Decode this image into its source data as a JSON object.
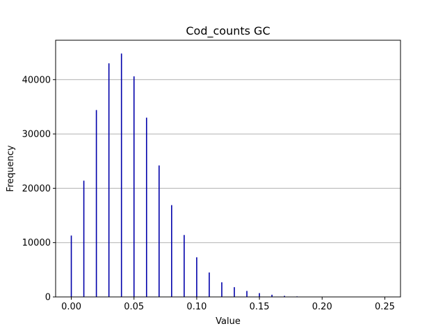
{
  "chart_data": {
    "type": "bar",
    "title": "Cod_counts GC",
    "xlabel": "Value",
    "ylabel": "Frequency",
    "xlim": [
      -0.0125,
      0.2625
    ],
    "ylim": [
      0,
      47250
    ],
    "grid": "y",
    "bar_color": "#0000aa",
    "x": [
      0.0,
      0.01,
      0.02,
      0.03,
      0.04,
      0.05,
      0.06,
      0.07,
      0.08,
      0.09,
      0.1,
      0.11,
      0.12,
      0.13,
      0.14,
      0.15,
      0.16,
      0.17,
      0.18,
      0.19,
      0.2
    ],
    "values": [
      11300,
      21400,
      34400,
      43000,
      44800,
      40600,
      33000,
      24200,
      16900,
      11400,
      7300,
      4500,
      2700,
      1800,
      1100,
      700,
      400,
      200,
      100,
      50,
      20
    ],
    "xticks": [
      0.0,
      0.05,
      0.1,
      0.15,
      0.2,
      0.25
    ],
    "xtick_labels": [
      "0.00",
      "0.05",
      "0.10",
      "0.15",
      "0.20",
      "0.25"
    ],
    "yticks": [
      0,
      10000,
      20000,
      30000,
      40000
    ],
    "ytick_labels": [
      "0",
      "10000",
      "20000",
      "30000",
      "40000"
    ]
  }
}
